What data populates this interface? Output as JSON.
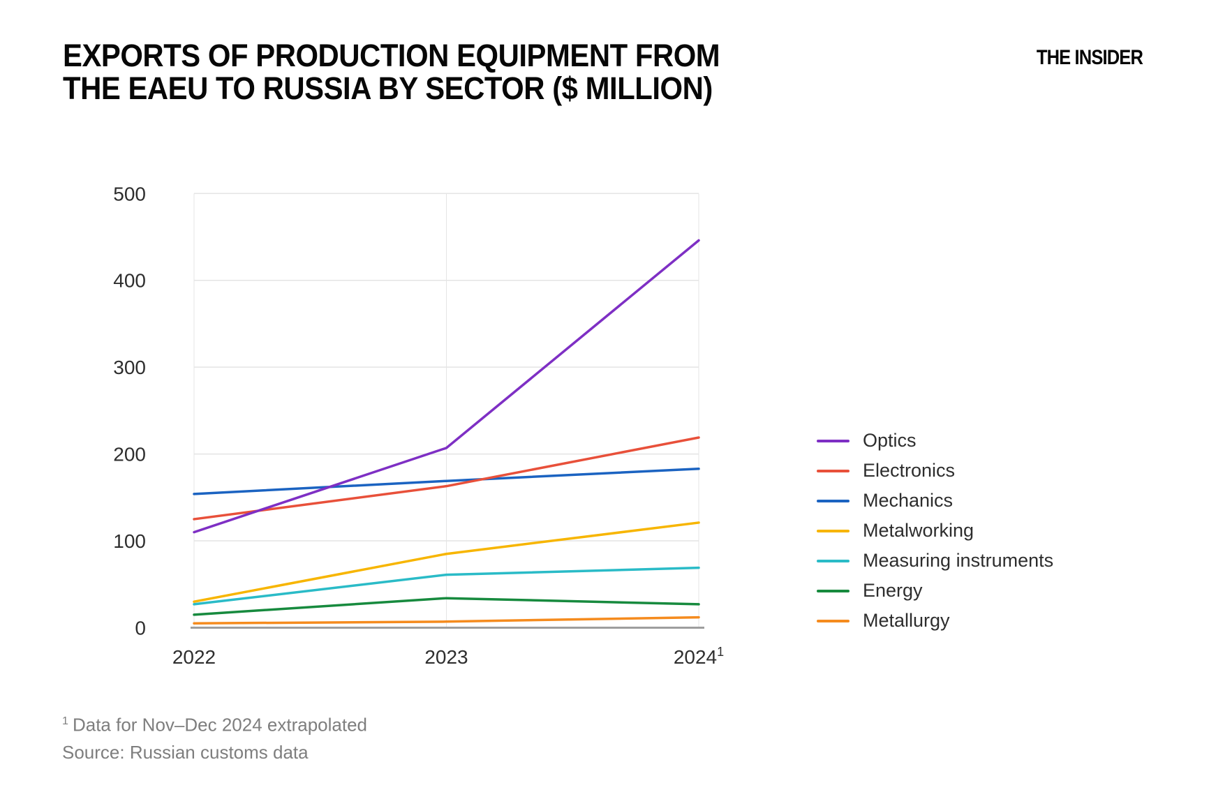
{
  "header": {
    "title_line1": "EXPORTS OF PRODUCTION EQUIPMENT FROM",
    "title_line2": "THE EAEU TO RUSSIA BY SECTOR ($ MILLION)",
    "logo": "THE INSIDER"
  },
  "chart_data": {
    "type": "line",
    "title": "Exports of production equipment from the EAEU to Russia by sector ($ million)",
    "x_labels": [
      "2022",
      "2023",
      "2024"
    ],
    "x_label_superscript": {
      "index": 2,
      "marker": "1"
    },
    "series": [
      {
        "name": "Optics",
        "color": "#7E2FC4",
        "values": [
          110,
          207,
          446
        ]
      },
      {
        "name": "Electronics",
        "color": "#E8503A",
        "values": [
          125,
          163,
          219
        ]
      },
      {
        "name": "Mechanics",
        "color": "#1B63C1",
        "values": [
          154,
          169,
          183
        ]
      },
      {
        "name": "Metalworking",
        "color": "#F7B500",
        "values": [
          30,
          85,
          121
        ]
      },
      {
        "name": "Measuring instruments",
        "color": "#2ABBC7",
        "values": [
          27,
          61,
          69
        ]
      },
      {
        "name": "Energy",
        "color": "#178A3E",
        "values": [
          15,
          34,
          27
        ]
      },
      {
        "name": "Metallurgy",
        "color": "#F58B1E",
        "values": [
          5,
          7,
          12
        ]
      }
    ],
    "ylim": [
      0,
      500
    ],
    "yticks": [
      0,
      100,
      200,
      300,
      400,
      500
    ],
    "grid": true,
    "grid_color": "#E4E4E4",
    "axis_color": "#9E9E9E",
    "legend_position": "right"
  },
  "footnotes": {
    "note_marker": "1",
    "note_text": "Data for Nov–Dec 2024 extrapolated",
    "source": "Source: Russian customs data"
  }
}
